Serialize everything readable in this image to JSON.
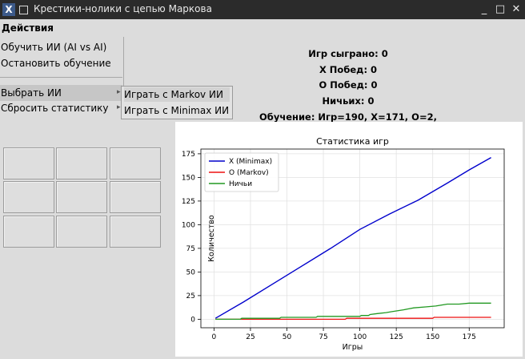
{
  "window": {
    "title": "Крестики-нолики с цепью Маркова",
    "icon_char": "X",
    "minimize_glyph": "_",
    "maximize_glyph": "□",
    "close_glyph": "✕"
  },
  "menubar": {
    "actions_label": "Действия"
  },
  "actions_menu": {
    "train_label": "Обучить ИИ (AI vs AI)",
    "stop_label": "Остановить обучение",
    "choose_ai_label": "Выбрать ИИ",
    "reset_label": "Сбросить статистику"
  },
  "choose_ai_submenu": {
    "markov_label": "Играть с Markov ИИ",
    "minimax_label": "Играть с Minimax ИИ"
  },
  "stats": {
    "games_played": "Игр сыграно: 0",
    "x_wins": "X Побед: 0",
    "o_wins": "O Побед: 0",
    "draws": "Ничьих: 0",
    "training": "Обучение: Игр=190, X=171, O=2, Ничьи=17"
  },
  "board": {
    "cells": [
      "",
      "",
      "",
      "",
      "",
      "",
      "",
      "",
      ""
    ]
  },
  "chart_data": {
    "type": "line",
    "title": "Статистика игр",
    "xlabel": "Игры",
    "ylabel": "Количество",
    "xlim": [
      -9,
      199
    ],
    "ylim": [
      -9,
      180
    ],
    "x_ticks": [
      0,
      25,
      50,
      75,
      100,
      125,
      150,
      175
    ],
    "y_ticks": [
      0,
      25,
      50,
      75,
      100,
      125,
      150,
      175
    ],
    "grid": true,
    "legend_position": "top-left",
    "series": [
      {
        "name": "X (Minimax)",
        "color": "#0000cc",
        "points": [
          [
            1,
            1
          ],
          [
            20,
            18
          ],
          [
            40,
            37
          ],
          [
            60,
            56
          ],
          [
            80,
            75
          ],
          [
            100,
            95
          ],
          [
            120,
            111
          ],
          [
            140,
            126
          ],
          [
            160,
            144
          ],
          [
            175,
            158
          ],
          [
            190,
            171
          ]
        ]
      },
      {
        "name": "O (Markov)",
        "color": "#ee1111",
        "points": [
          [
            1,
            0
          ],
          [
            90,
            0
          ],
          [
            91,
            1
          ],
          [
            150,
            1
          ],
          [
            151,
            2
          ],
          [
            190,
            2
          ]
        ]
      },
      {
        "name": "Ничьи",
        "color": "#229922",
        "points": [
          [
            1,
            0
          ],
          [
            18,
            0
          ],
          [
            19,
            1
          ],
          [
            45,
            1
          ],
          [
            46,
            2
          ],
          [
            70,
            2
          ],
          [
            71,
            3
          ],
          [
            100,
            3
          ],
          [
            101,
            4
          ],
          [
            106,
            4
          ],
          [
            107,
            5
          ],
          [
            112,
            6
          ],
          [
            118,
            7
          ],
          [
            122,
            8
          ],
          [
            130,
            10
          ],
          [
            137,
            12
          ],
          [
            145,
            13
          ],
          [
            152,
            14
          ],
          [
            160,
            16
          ],
          [
            168,
            16
          ],
          [
            175,
            17
          ],
          [
            190,
            17
          ]
        ]
      }
    ]
  }
}
